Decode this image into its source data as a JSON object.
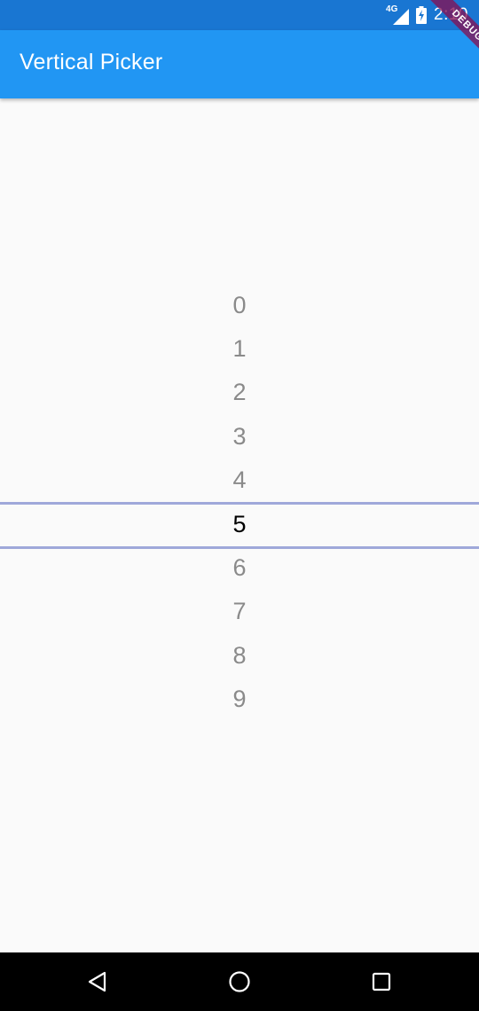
{
  "status_bar": {
    "network": "4G",
    "time": "2:10",
    "icons": [
      "signal-icon",
      "battery-charging-icon"
    ]
  },
  "app_bar": {
    "title": "Vertical Picker"
  },
  "debug_banner": {
    "label": "DEBUG"
  },
  "picker": {
    "items": [
      "0",
      "1",
      "2",
      "3",
      "4",
      "5",
      "6",
      "7",
      "8",
      "9"
    ],
    "selected": "5",
    "selected_color": "#000000",
    "unselected_color": "#8a8a8a",
    "indicator_color": "#9fa8da"
  },
  "nav_bar": {
    "icons": [
      "back-icon",
      "home-icon",
      "recents-icon"
    ]
  },
  "colors": {
    "status_bar": "#1976d2",
    "app_bar": "#2196f3",
    "background": "#fafafa",
    "debug_banner": "#880e4f"
  }
}
